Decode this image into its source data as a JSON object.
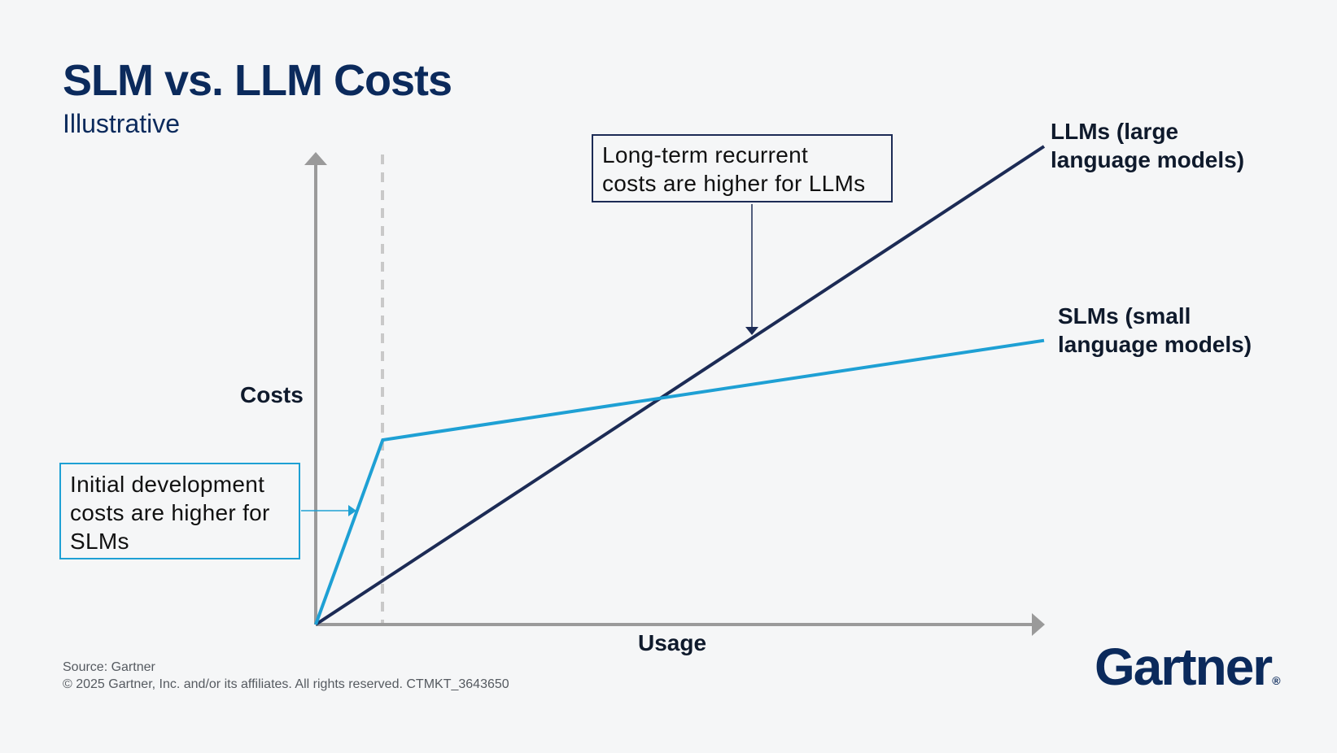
{
  "header": {
    "title": "SLM vs. LLM Costs",
    "subtitle": "Illustrative"
  },
  "chart_data": {
    "type": "line",
    "xlabel": "Usage",
    "ylabel": "Costs",
    "series": [
      {
        "name": "LLMs (large language models)",
        "color": "#1c2b55",
        "points": [
          [
            0,
            0
          ],
          [
            1,
            1
          ]
        ]
      },
      {
        "name": "SLMs (small language models)",
        "color": "#1ea0d4",
        "points": [
          [
            0,
            0
          ],
          [
            0.092,
            0.386
          ],
          [
            1,
            0.594
          ]
        ]
      }
    ],
    "annotations": [
      {
        "text": "Long-term recurrent costs are higher for LLMs"
      },
      {
        "text": "Initial development costs are higher for SLMs"
      }
    ],
    "grid": false,
    "axis_ticks": false
  },
  "labels": {
    "llm_series_line1": "LLMs (large",
    "llm_series_line2": "language models)",
    "slm_series_line1": "SLMs (small",
    "slm_series_line2": "language models)",
    "callout_llm_line1": "Long-term recurrent",
    "callout_llm_line2": "costs are higher for LLMs",
    "callout_slm_line1": "Initial development",
    "callout_slm_line2": "costs are higher for",
    "callout_slm_line3": "SLMs"
  },
  "footer": {
    "source": "Source: Gartner",
    "copyright": "© 2025 Gartner, Inc. and/or its affiliates. All rights reserved. CTMKT_3643650"
  },
  "logo": {
    "text": "Gartner",
    "mark": "®"
  }
}
